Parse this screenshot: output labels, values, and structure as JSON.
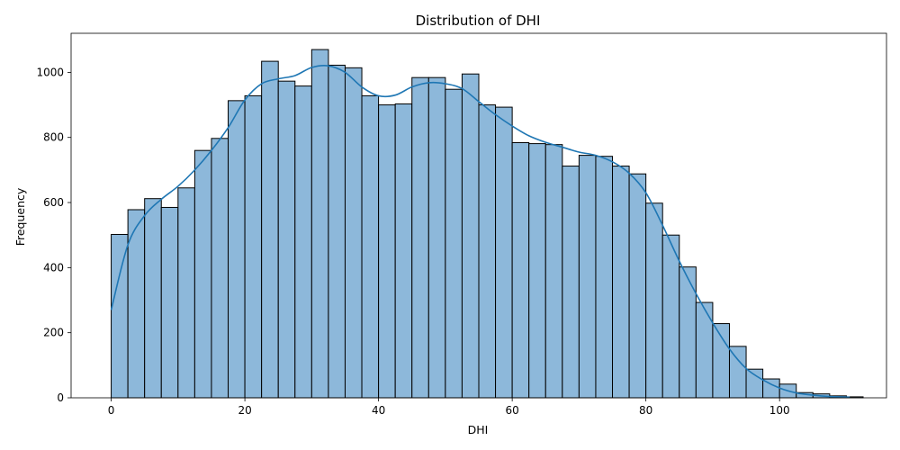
{
  "chart_data": {
    "type": "histogram",
    "title": "Distribution of DHI",
    "xlabel": "DHI",
    "ylabel": "Frequency",
    "xlim": [
      -6,
      116
    ],
    "ylim": [
      0,
      1120
    ],
    "xticks": [
      0,
      20,
      40,
      60,
      80,
      100
    ],
    "yticks": [
      0,
      200,
      400,
      600,
      800,
      1000
    ],
    "bin_width": 2.5,
    "bin_start": 0,
    "bar_color": "#8db8da",
    "edge_color": "#000000",
    "kde_color": "#1f77b4",
    "grid": false,
    "values": [
      502,
      578,
      612,
      585,
      645,
      760,
      797,
      913,
      928,
      1034,
      973,
      958,
      1070,
      1022,
      1014,
      928,
      900,
      903,
      984,
      984,
      948,
      995,
      900,
      893,
      784,
      781,
      778,
      712,
      745,
      742,
      712,
      688,
      598,
      500,
      402,
      293,
      228,
      158,
      88,
      58,
      42,
      16,
      12,
      6,
      3
    ],
    "kde": {
      "x": [
        0,
        2.5,
        5,
        7.5,
        10,
        12.5,
        15,
        17.5,
        20,
        22.5,
        25,
        27.5,
        30,
        32.5,
        35,
        37.5,
        40,
        42.5,
        45,
        47.5,
        50,
        52.5,
        55,
        57.5,
        60,
        62.5,
        65,
        67.5,
        70,
        72.5,
        75,
        77.5,
        80,
        82.5,
        85,
        87.5,
        90,
        92.5,
        95,
        97.5,
        100,
        102.5,
        105,
        107.5,
        110.5
      ],
      "y": [
        270,
        470,
        560,
        610,
        650,
        700,
        760,
        830,
        915,
        965,
        980,
        990,
        1015,
        1020,
        1000,
        955,
        928,
        930,
        955,
        968,
        965,
        950,
        910,
        870,
        835,
        805,
        785,
        770,
        755,
        745,
        725,
        690,
        630,
        530,
        420,
        320,
        230,
        150,
        90,
        55,
        30,
        15,
        8,
        4,
        2
      ]
    }
  }
}
